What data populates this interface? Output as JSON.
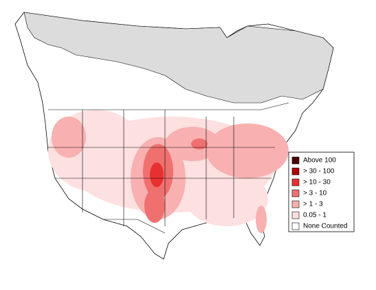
{
  "legend": {
    "items": [
      {
        "label": "Above 100",
        "color": "#4a0000"
      },
      {
        "label": "> 30 - 100",
        "color": "#b00000"
      },
      {
        "label": "> 10 - 30",
        "color": "#e83030"
      },
      {
        "label": "> 3 - 10",
        "color": "#f07070"
      },
      {
        "label": "> 1 - 3",
        "color": "#f8b0b0"
      },
      {
        "label": "0.05 - 1",
        "color": "#fde0e0"
      },
      {
        "label": "None Counted",
        "color": "#ffffff"
      }
    ]
  }
}
